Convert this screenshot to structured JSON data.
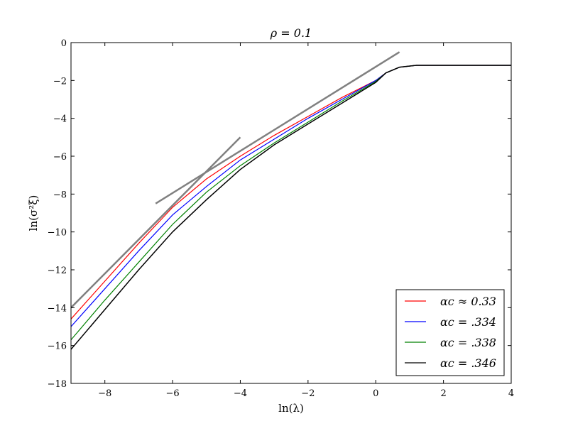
{
  "chart_data": {
    "type": "line",
    "title": "ρ = 0.1",
    "xlabel": "ln(λ)",
    "ylabel": "ln(σ²ξ)",
    "xlim": [
      -9,
      4
    ],
    "ylim": [
      -18,
      0
    ],
    "xticks": [
      -8,
      -6,
      -4,
      -2,
      0,
      2,
      4
    ],
    "yticks": [
      0,
      -2,
      -4,
      -6,
      -8,
      -10,
      -12,
      -14,
      -16,
      -18
    ],
    "xtick_labels": [
      "−8",
      "−6",
      "−4",
      "−2",
      "0",
      "2",
      "4"
    ],
    "ytick_labels": [
      "0",
      "−2",
      "−4",
      "−6",
      "−8",
      "−10",
      "−12",
      "−14",
      "−16",
      "−18"
    ],
    "grid": false,
    "legend_position": "lower-right",
    "series": [
      {
        "name": "αc ≈ 0.33",
        "color": "#ff0000",
        "x": [
          -9,
          -8,
          -7,
          -6,
          -5,
          -4,
          -3,
          -2,
          -1,
          0,
          0.3,
          0.7,
          1.2,
          2,
          3,
          4
        ],
        "y": [
          -14.6,
          -12.6,
          -10.6,
          -8.7,
          -7.2,
          -6.0,
          -4.9,
          -3.9,
          -2.9,
          -2.0,
          -1.6,
          -1.3,
          -1.2,
          -1.2,
          -1.2,
          -1.2
        ]
      },
      {
        "name": "αc = .334",
        "color": "#0000ff",
        "x": [
          -9,
          -8,
          -7,
          -6,
          -5,
          -4,
          -3,
          -2,
          -1,
          0,
          0.3,
          0.7,
          1.2,
          2,
          3,
          4
        ],
        "y": [
          -15.0,
          -13.0,
          -11.0,
          -9.1,
          -7.6,
          -6.2,
          -5.1,
          -4.0,
          -3.0,
          -2.0,
          -1.6,
          -1.3,
          -1.2,
          -1.2,
          -1.2,
          -1.2
        ]
      },
      {
        "name": "αc = .338",
        "color": "#008000",
        "x": [
          -9,
          -8,
          -7,
          -6,
          -5,
          -4,
          -3,
          -2,
          -1,
          0,
          0.3,
          0.7,
          1.2,
          2,
          3,
          4
        ],
        "y": [
          -15.7,
          -13.6,
          -11.6,
          -9.6,
          -7.9,
          -6.5,
          -5.3,
          -4.2,
          -3.1,
          -2.05,
          -1.6,
          -1.3,
          -1.2,
          -1.2,
          -1.2,
          -1.2
        ]
      },
      {
        "name": "αc = .346",
        "color": "#000000",
        "x": [
          -9,
          -8,
          -7,
          -6,
          -5,
          -4,
          -3,
          -2,
          -1,
          0,
          0.3,
          0.7,
          1.2,
          2,
          3,
          4
        ],
        "y": [
          -16.2,
          -14.1,
          -12.0,
          -10.0,
          -8.3,
          -6.7,
          -5.4,
          -4.3,
          -3.2,
          -2.1,
          -1.6,
          -1.3,
          -1.2,
          -1.2,
          -1.2,
          -1.2
        ]
      }
    ],
    "reference_lines": [
      {
        "color": "#808080",
        "x": [
          -9,
          -4
        ],
        "y": [
          -14.0,
          -5.0
        ]
      },
      {
        "color": "#808080",
        "x": [
          -6.5,
          0.7
        ],
        "y": [
          -8.5,
          -0.5
        ]
      }
    ]
  }
}
